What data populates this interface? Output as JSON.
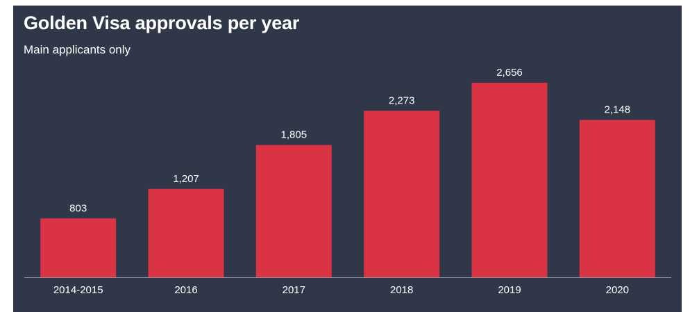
{
  "chart_data": {
    "type": "bar",
    "title": "Golden Visa approvals per year",
    "subtitle": "Main applicants only",
    "categories": [
      "2014-2015",
      "2016",
      "2017",
      "2018",
      "2019",
      "2020"
    ],
    "values": [
      803,
      1207,
      1805,
      2273,
      2656,
      2148
    ],
    "value_labels": [
      "803",
      "1,207",
      "1,805",
      "2,273",
      "2,656",
      "2,148"
    ],
    "xlabel": "",
    "ylabel": "",
    "ylim": [
      0,
      2656
    ],
    "grid": false,
    "legend": "none",
    "colors": {
      "background": "#2f3749",
      "bar": "#d93344",
      "text": "#ffffff",
      "axis": "#8a909c"
    }
  }
}
